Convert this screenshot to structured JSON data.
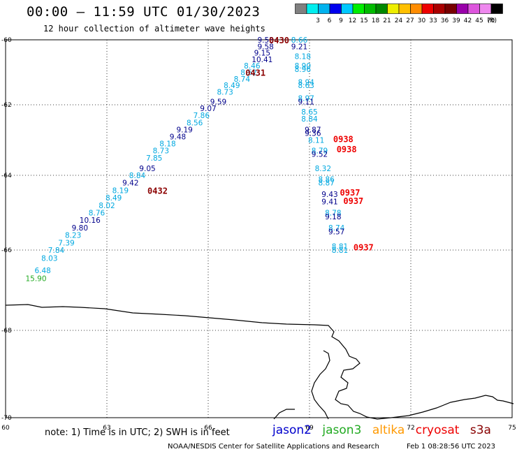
{
  "header": {
    "title": "00:00 – 11:59 UTC 01/30/2023",
    "subtitle": "12 hour collection of altimeter wave heights"
  },
  "legend": {
    "unit": "(ft)",
    "bins": [
      {
        "label": "",
        "color": "#808080"
      },
      {
        "label": "3",
        "color": "#00eeee"
      },
      {
        "label": "6",
        "color": "#00b2ee"
      },
      {
        "label": "9",
        "color": "#0000ee"
      },
      {
        "label": "12",
        "color": "#00c8ff"
      },
      {
        "label": "15",
        "color": "#00ee00"
      },
      {
        "label": "18",
        "color": "#00bb00"
      },
      {
        "label": "21",
        "color": "#008800"
      },
      {
        "label": "24",
        "color": "#eeee00"
      },
      {
        "label": "27",
        "color": "#ffc000"
      },
      {
        "label": "30",
        "color": "#ff8c00"
      },
      {
        "label": "33",
        "color": "#ee0000"
      },
      {
        "label": "36",
        "color": "#aa0000"
      },
      {
        "label": "39",
        "color": "#770000"
      },
      {
        "label": "42",
        "color": "#9900aa"
      },
      {
        "label": "45",
        "color": "#dd55dd"
      },
      {
        "label": "70",
        "color": "#ee88ee"
      },
      {
        "label": "",
        "color": "#000000"
      }
    ]
  },
  "axes": {
    "x_ticks": [
      {
        "label": "60",
        "lon": 60
      },
      {
        "label": "63",
        "lon": 63
      },
      {
        "label": "66",
        "lon": 66
      },
      {
        "label": "69",
        "lon": 69
      },
      {
        "label": "72",
        "lon": 72
      },
      {
        "label": "75",
        "lon": 75
      }
    ],
    "y_ticks": [
      {
        "label": "-60",
        "lat": -60
      },
      {
        "label": "-62",
        "lat": -62
      },
      {
        "label": "-64",
        "lat": -64
      },
      {
        "label": "-66",
        "lat": -66
      },
      {
        "label": "-68",
        "lat": -68
      },
      {
        "label": "-70",
        "lat": -70
      }
    ],
    "lon_range": [
      60,
      75
    ],
    "lat_range": [
      -60,
      -70
    ]
  },
  "colors": {
    "lightblue": "#00a8e0",
    "darkblue": "#00008b",
    "green": "#22aa22",
    "darkred": "#8b0000",
    "red": "#ee0000"
  },
  "observations": [
    {
      "v": "9.53",
      "lon": 67.7,
      "lat": -60.0,
      "c": "darkblue"
    },
    {
      "v": "9.58",
      "lon": 67.7,
      "lat": -60.2,
      "c": "darkblue"
    },
    {
      "v": "9.15",
      "lon": 67.6,
      "lat": -60.4,
      "c": "darkblue"
    },
    {
      "v": "10.41",
      "lon": 67.6,
      "lat": -60.6,
      "c": "darkblue"
    },
    {
      "v": "8.46",
      "lon": 67.3,
      "lat": -60.8,
      "c": "lightblue"
    },
    {
      "v": "8.52",
      "lon": 67.2,
      "lat": -61.0,
      "c": "lightblue"
    },
    {
      "v": "8.74",
      "lon": 67.0,
      "lat": -61.2,
      "c": "lightblue"
    },
    {
      "v": "8.49",
      "lon": 66.7,
      "lat": -61.4,
      "c": "lightblue"
    },
    {
      "v": "8.73",
      "lon": 66.5,
      "lat": -61.6,
      "c": "lightblue"
    },
    {
      "v": "9.59",
      "lon": 66.3,
      "lat": -61.9,
      "c": "darkblue"
    },
    {
      "v": "9.07",
      "lon": 66.0,
      "lat": -62.1,
      "c": "darkblue"
    },
    {
      "v": "7.86",
      "lon": 65.8,
      "lat": -62.3,
      "c": "lightblue"
    },
    {
      "v": "8.56",
      "lon": 65.6,
      "lat": -62.5,
      "c": "lightblue"
    },
    {
      "v": "9.19",
      "lon": 65.3,
      "lat": -62.7,
      "c": "darkblue"
    },
    {
      "v": "9.48",
      "lon": 65.1,
      "lat": -62.9,
      "c": "darkblue"
    },
    {
      "v": "8.18",
      "lon": 64.8,
      "lat": -63.1,
      "c": "lightblue"
    },
    {
      "v": "8.73",
      "lon": 64.6,
      "lat": -63.3,
      "c": "lightblue"
    },
    {
      "v": "7.85",
      "lon": 64.4,
      "lat": -63.5,
      "c": "lightblue"
    },
    {
      "v": "9.05",
      "lon": 64.2,
      "lat": -63.8,
      "c": "darkblue"
    },
    {
      "v": "8.84",
      "lon": 63.9,
      "lat": -64.0,
      "c": "lightblue"
    },
    {
      "v": "9.42",
      "lon": 63.7,
      "lat": -64.2,
      "c": "darkblue"
    },
    {
      "v": "8.19",
      "lon": 63.4,
      "lat": -64.4,
      "c": "lightblue"
    },
    {
      "v": "8.49",
      "lon": 63.2,
      "lat": -64.6,
      "c": "lightblue"
    },
    {
      "v": "8.02",
      "lon": 63.0,
      "lat": -64.8,
      "c": "lightblue"
    },
    {
      "v": "8.76",
      "lon": 62.7,
      "lat": -65.0,
      "c": "lightblue"
    },
    {
      "v": "10.16",
      "lon": 62.5,
      "lat": -65.2,
      "c": "darkblue"
    },
    {
      "v": "9.80",
      "lon": 62.2,
      "lat": -65.4,
      "c": "darkblue"
    },
    {
      "v": "8.23",
      "lon": 62.0,
      "lat": -65.6,
      "c": "lightblue"
    },
    {
      "v": "7.39",
      "lon": 61.8,
      "lat": -65.8,
      "c": "lightblue"
    },
    {
      "v": "7.84",
      "lon": 61.5,
      "lat": -66.0,
      "c": "lightblue"
    },
    {
      "v": "8.03",
      "lon": 61.3,
      "lat": -66.2,
      "c": "lightblue"
    },
    {
      "v": "6.48",
      "lon": 61.1,
      "lat": -66.5,
      "c": "lightblue"
    },
    {
      "v": "15.90",
      "lon": 60.9,
      "lat": -66.7,
      "c": "green"
    },
    {
      "v": "8.66",
      "lon": 68.7,
      "lat": -60.0,
      "c": "lightblue"
    },
    {
      "v": "9.21",
      "lon": 68.7,
      "lat": -60.2,
      "c": "darkblue"
    },
    {
      "v": "8.18",
      "lon": 68.8,
      "lat": -60.5,
      "c": "lightblue"
    },
    {
      "v": "8.90",
      "lon": 68.8,
      "lat": -60.8,
      "c": "lightblue"
    },
    {
      "v": "8.96",
      "lon": 68.8,
      "lat": -60.9,
      "c": "lightblue"
    },
    {
      "v": "8.94",
      "lon": 68.9,
      "lat": -61.3,
      "c": "lightblue"
    },
    {
      "v": "8.63",
      "lon": 68.9,
      "lat": -61.4,
      "c": "lightblue"
    },
    {
      "v": "8.97",
      "lon": 68.9,
      "lat": -61.8,
      "c": "lightblue"
    },
    {
      "v": "9.11",
      "lon": 68.9,
      "lat": -61.9,
      "c": "darkblue"
    },
    {
      "v": "8.65",
      "lon": 69.0,
      "lat": -62.2,
      "c": "lightblue"
    },
    {
      "v": "8.84",
      "lon": 69.0,
      "lat": -62.4,
      "c": "lightblue"
    },
    {
      "v": "9.87",
      "lon": 69.1,
      "lat": -62.7,
      "c": "darkblue"
    },
    {
      "v": "9.36",
      "lon": 69.1,
      "lat": -62.8,
      "c": "darkblue"
    },
    {
      "v": "8.11",
      "lon": 69.2,
      "lat": -63.0,
      "c": "lightblue"
    },
    {
      "v": "8.79",
      "lon": 69.3,
      "lat": -63.3,
      "c": "lightblue"
    },
    {
      "v": "9.52",
      "lon": 69.3,
      "lat": -63.4,
      "c": "darkblue"
    },
    {
      "v": "8.32",
      "lon": 69.4,
      "lat": -63.8,
      "c": "lightblue"
    },
    {
      "v": "8.86",
      "lon": 69.5,
      "lat": -64.1,
      "c": "lightblue"
    },
    {
      "v": "8.87",
      "lon": 69.5,
      "lat": -64.2,
      "c": "lightblue"
    },
    {
      "v": "9.43",
      "lon": 69.6,
      "lat": -64.5,
      "c": "darkblue"
    },
    {
      "v": "9.41",
      "lon": 69.6,
      "lat": -64.7,
      "c": "darkblue"
    },
    {
      "v": "8.78",
      "lon": 69.7,
      "lat": -65.0,
      "c": "lightblue"
    },
    {
      "v": "9.18",
      "lon": 69.7,
      "lat": -65.1,
      "c": "darkblue"
    },
    {
      "v": "8.74",
      "lon": 69.8,
      "lat": -65.4,
      "c": "lightblue"
    },
    {
      "v": "9.57",
      "lon": 69.8,
      "lat": -65.5,
      "c": "darkblue"
    },
    {
      "v": "8.81",
      "lon": 69.9,
      "lat": -65.9,
      "c": "lightblue"
    },
    {
      "v": "8.81",
      "lon": 69.9,
      "lat": -66.0,
      "c": "lightblue"
    }
  ],
  "time_labels": [
    {
      "t": "0430",
      "lon": 68.1,
      "lat": -60.0,
      "c": "darkred"
    },
    {
      "t": "0431",
      "lon": 67.4,
      "lat": -61.0,
      "c": "darkred"
    },
    {
      "t": "0432",
      "lon": 64.5,
      "lat": -64.4,
      "c": "darkred"
    },
    {
      "t": "0938",
      "lon": 70.0,
      "lat": -62.96,
      "c": "red"
    },
    {
      "t": "0938",
      "lon": 70.1,
      "lat": -63.25,
      "c": "red"
    },
    {
      "t": "0937",
      "lon": 70.2,
      "lat": -64.45,
      "c": "red"
    },
    {
      "t": "0937",
      "lon": 70.3,
      "lat": -64.67,
      "c": "red"
    },
    {
      "t": "0937",
      "lon": 70.6,
      "lat": -65.92,
      "c": "red"
    }
  ],
  "footer": {
    "note": "note: 1) Time is in UTC; 2) SWH is in feet",
    "satellites": [
      {
        "name": "jason2",
        "color": "#0000cc"
      },
      {
        "name": "jason3",
        "color": "#22aa22"
      },
      {
        "name": "altika",
        "color": "#ff9900"
      },
      {
        "name": "cryosat",
        "color": "#ee0000"
      },
      {
        "name": "s3a",
        "color": "#880000"
      }
    ],
    "credit": "NOAA/NESDIS Center for Satellite Applications and Research",
    "timestamp": "Feb  1 08:28:56 UTC 2023"
  }
}
